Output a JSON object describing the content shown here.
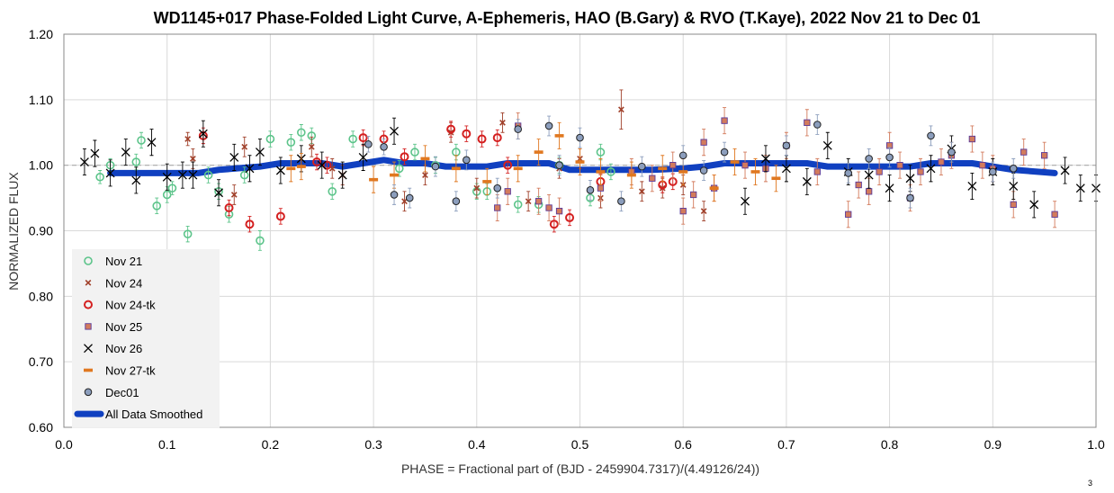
{
  "page_number": "3",
  "chart_data": {
    "type": "scatter",
    "title": "WD1145+017 Phase-Folded Light Curve, A-Ephemeris, HAO (B.Gary) & RVO (T.Kaye), 2022 Nov 21 to Dec 01",
    "xlabel": "PHASE = Fractional part of (BJD - 2459904.7317)/(4.49126/24))",
    "ylabel": "NORMALIZED FLUX",
    "xlim": [
      0.0,
      1.0
    ],
    "ylim": [
      0.6,
      1.2
    ],
    "x_ticks": [
      "0.0",
      "0.1",
      "0.2",
      "0.3",
      "0.4",
      "0.5",
      "0.6",
      "0.7",
      "0.8",
      "0.9",
      "1.0"
    ],
    "y_ticks": [
      "0.60",
      "0.70",
      "0.80",
      "0.90",
      "1.00",
      "1.10",
      "1.20"
    ],
    "reference_line": 1.0,
    "grid": true,
    "legend_position": "bottom-left",
    "series": [
      {
        "name": "Nov 21",
        "marker": "open-circle",
        "color": "#5cc48a",
        "x": [
          0.035,
          0.045,
          0.07,
          0.075,
          0.09,
          0.1,
          0.105,
          0.12,
          0.14,
          0.15,
          0.16,
          0.175,
          0.19,
          0.2,
          0.22,
          0.23,
          0.24,
          0.26,
          0.28,
          0.325,
          0.34,
          0.36,
          0.38,
          0.4,
          0.41,
          0.44,
          0.46,
          0.48,
          0.51,
          0.52,
          0.53
        ],
        "y": [
          0.982,
          1.0,
          1.005,
          1.038,
          0.938,
          0.955,
          0.965,
          0.895,
          0.985,
          0.96,
          0.925,
          0.985,
          0.885,
          1.04,
          1.035,
          1.05,
          1.045,
          0.96,
          1.04,
          0.995,
          1.02,
          1.0,
          1.02,
          0.96,
          0.96,
          0.94,
          0.94,
          1.0,
          0.95,
          1.02,
          0.99
        ],
        "err": [
          0.01,
          0.01,
          0.012,
          0.012,
          0.012,
          0.012,
          0.01,
          0.012,
          0.012,
          0.012,
          0.012,
          0.012,
          0.015,
          0.012,
          0.012,
          0.012,
          0.012,
          0.012,
          0.012,
          0.012,
          0.012,
          0.012,
          0.012,
          0.012,
          0.012,
          0.012,
          0.012,
          0.012,
          0.012,
          0.012,
          0.012
        ]
      },
      {
        "name": "Nov 24",
        "marker": "x-small",
        "color": "#a0402a",
        "x": [
          0.12,
          0.125,
          0.165,
          0.175,
          0.24,
          0.26,
          0.27,
          0.33,
          0.35,
          0.375,
          0.4,
          0.425,
          0.45,
          0.48,
          0.5,
          0.52,
          0.54,
          0.56,
          0.58,
          0.6,
          0.62
        ],
        "y": [
          1.04,
          1.01,
          0.955,
          1.028,
          1.028,
          0.995,
          0.985,
          0.945,
          0.985,
          1.05,
          0.965,
          1.065,
          0.945,
          0.995,
          1.01,
          0.95,
          1.085,
          0.96,
          0.965,
          0.97,
          0.93
        ],
        "err": [
          0.01,
          0.015,
          0.015,
          0.015,
          0.015,
          0.015,
          0.015,
          0.015,
          0.015,
          0.015,
          0.015,
          0.015,
          0.015,
          0.015,
          0.015,
          0.015,
          0.03,
          0.015,
          0.015,
          0.015,
          0.015
        ]
      },
      {
        "name": "Nov 24-tk",
        "marker": "open-circle",
        "color": "#d42020",
        "x": [
          0.135,
          0.16,
          0.18,
          0.21,
          0.245,
          0.255,
          0.29,
          0.31,
          0.33,
          0.375,
          0.39,
          0.405,
          0.42,
          0.43,
          0.475,
          0.49,
          0.52,
          0.58,
          0.59
        ],
        "y": [
          1.045,
          0.935,
          0.91,
          0.922,
          1.005,
          1.0,
          1.042,
          1.04,
          1.013,
          1.055,
          1.048,
          1.04,
          1.042,
          1.0,
          0.91,
          0.92,
          0.975,
          0.97,
          0.975
        ],
        "err": [
          0.012,
          0.012,
          0.012,
          0.012,
          0.012,
          0.012,
          0.012,
          0.012,
          0.012,
          0.012,
          0.012,
          0.012,
          0.012,
          0.012,
          0.012,
          0.012,
          0.012,
          0.012,
          0.012
        ]
      },
      {
        "name": "Nov 25",
        "marker": "square",
        "color": "#d37b5c",
        "x": [
          0.42,
          0.43,
          0.44,
          0.46,
          0.47,
          0.48,
          0.52,
          0.55,
          0.57,
          0.59,
          0.6,
          0.61,
          0.62,
          0.63,
          0.64,
          0.66,
          0.68,
          0.7,
          0.72,
          0.73,
          0.76,
          0.77,
          0.78,
          0.79,
          0.8,
          0.81,
          0.82,
          0.83,
          0.85,
          0.86,
          0.88,
          0.89,
          0.9,
          0.92,
          0.93,
          0.95,
          0.96
        ],
        "y": [
          0.935,
          0.96,
          1.06,
          0.945,
          0.935,
          0.93,
          0.965,
          0.99,
          0.98,
          1.0,
          0.93,
          0.955,
          1.035,
          0.965,
          1.068,
          1.0,
          0.995,
          1.03,
          1.065,
          0.99,
          0.925,
          0.97,
          0.96,
          0.99,
          1.03,
          1.0,
          0.95,
          0.99,
          1.005,
          1.015,
          1.04,
          1.0,
          0.995,
          0.94,
          1.02,
          1.015,
          0.925
        ],
        "err": [
          0.02,
          0.02,
          0.02,
          0.02,
          0.02,
          0.02,
          0.02,
          0.02,
          0.02,
          0.02,
          0.02,
          0.02,
          0.02,
          0.02,
          0.02,
          0.02,
          0.02,
          0.02,
          0.02,
          0.02,
          0.02,
          0.02,
          0.02,
          0.02,
          0.02,
          0.02,
          0.02,
          0.02,
          0.02,
          0.02,
          0.02,
          0.02,
          0.02,
          0.02,
          0.02,
          0.02,
          0.02
        ]
      },
      {
        "name": "Nov 26",
        "marker": "x",
        "color": "#000000",
        "x": [
          0.02,
          0.03,
          0.045,
          0.06,
          0.07,
          0.085,
          0.1,
          0.115,
          0.125,
          0.135,
          0.15,
          0.165,
          0.18,
          0.19,
          0.21,
          0.23,
          0.25,
          0.27,
          0.29,
          0.32,
          0.66,
          0.68,
          0.7,
          0.72,
          0.74,
          0.76,
          0.78,
          0.8,
          0.82,
          0.84,
          0.86,
          0.88,
          0.9,
          0.92,
          0.94,
          0.97,
          0.985,
          1.0
        ],
        "y": [
          1.005,
          1.018,
          0.988,
          1.02,
          0.977,
          1.035,
          0.982,
          0.985,
          0.985,
          1.048,
          0.958,
          1.012,
          0.995,
          1.02,
          0.992,
          1.01,
          1.0,
          0.985,
          1.012,
          1.052,
          0.945,
          1.01,
          0.995,
          0.975,
          1.03,
          0.99,
          0.985,
          0.965,
          0.98,
          0.995,
          1.025,
          0.968,
          0.99,
          0.968,
          0.94,
          0.992,
          0.965,
          0.965
        ],
        "err": [
          0.02,
          0.02,
          0.02,
          0.02,
          0.02,
          0.02,
          0.02,
          0.02,
          0.02,
          0.02,
          0.02,
          0.02,
          0.02,
          0.02,
          0.02,
          0.02,
          0.02,
          0.02,
          0.02,
          0.02,
          0.02,
          0.02,
          0.02,
          0.02,
          0.02,
          0.02,
          0.02,
          0.02,
          0.02,
          0.02,
          0.02,
          0.02,
          0.02,
          0.02,
          0.02,
          0.02,
          0.02,
          0.02
        ]
      },
      {
        "name": "Nov 27-tk",
        "marker": "dash",
        "color": "#e07820",
        "x": [
          0.22,
          0.23,
          0.3,
          0.32,
          0.35,
          0.38,
          0.41,
          0.44,
          0.46,
          0.48,
          0.5,
          0.52,
          0.55,
          0.58,
          0.6,
          0.63,
          0.65,
          0.67,
          0.69
        ],
        "y": [
          0.995,
          0.998,
          0.978,
          0.985,
          1.01,
          0.995,
          0.975,
          0.995,
          1.02,
          1.045,
          1.005,
          0.99,
          0.985,
          0.995,
          0.99,
          0.965,
          1.005,
          0.99,
          0.98
        ],
        "err": [
          0.02,
          0.02,
          0.02,
          0.02,
          0.02,
          0.02,
          0.02,
          0.02,
          0.02,
          0.02,
          0.02,
          0.02,
          0.02,
          0.02,
          0.02,
          0.02,
          0.02,
          0.02,
          0.02
        ]
      },
      {
        "name": "Dec01",
        "marker": "filled-circle",
        "color": "#8c9ebd",
        "x": [
          0.295,
          0.31,
          0.32,
          0.335,
          0.36,
          0.38,
          0.39,
          0.42,
          0.44,
          0.47,
          0.48,
          0.5,
          0.51,
          0.54,
          0.56,
          0.6,
          0.62,
          0.64,
          0.7,
          0.73,
          0.76,
          0.78,
          0.8,
          0.82,
          0.84,
          0.86,
          0.9,
          0.92
        ],
        "y": [
          1.032,
          1.028,
          0.955,
          0.95,
          0.998,
          0.945,
          1.008,
          0.965,
          1.055,
          1.06,
          1.0,
          1.042,
          0.962,
          0.945,
          0.998,
          1.015,
          0.992,
          1.02,
          1.03,
          1.062,
          0.988,
          1.01,
          1.012,
          0.95,
          1.045,
          1.02,
          0.99,
          0.995
        ],
        "err": [
          0.012,
          0.012,
          0.015,
          0.015,
          0.015,
          0.015,
          0.015,
          0.015,
          0.015,
          0.015,
          0.015,
          0.015,
          0.015,
          0.015,
          0.015,
          0.015,
          0.015,
          0.015,
          0.015,
          0.015,
          0.015,
          0.015,
          0.015,
          0.015,
          0.015,
          0.015,
          0.015,
          0.015
        ]
      },
      {
        "name": "All Data Smoothed",
        "marker": "line",
        "color": "#1040c0",
        "x": [
          0.045,
          0.13,
          0.15,
          0.19,
          0.21,
          0.25,
          0.27,
          0.29,
          0.31,
          0.33,
          0.35,
          0.37,
          0.39,
          0.41,
          0.43,
          0.45,
          0.47,
          0.49,
          0.55,
          0.57,
          0.6,
          0.62,
          0.64,
          0.66,
          0.7,
          0.72,
          0.74,
          0.76,
          0.8,
          0.82,
          0.84,
          0.86,
          0.88,
          0.9,
          0.92,
          0.96
        ],
        "y": [
          0.988,
          0.988,
          0.993,
          0.998,
          1.003,
          1.003,
          0.998,
          1.003,
          1.008,
          1.003,
          1.003,
          0.998,
          0.998,
          0.998,
          1.003,
          1.003,
          1.003,
          0.993,
          0.993,
          0.993,
          0.995,
          0.998,
          1.003,
          1.003,
          1.003,
          1.003,
          0.998,
          0.998,
          0.998,
          0.998,
          1.003,
          1.003,
          1.003,
          0.998,
          0.993,
          0.988
        ]
      }
    ]
  }
}
